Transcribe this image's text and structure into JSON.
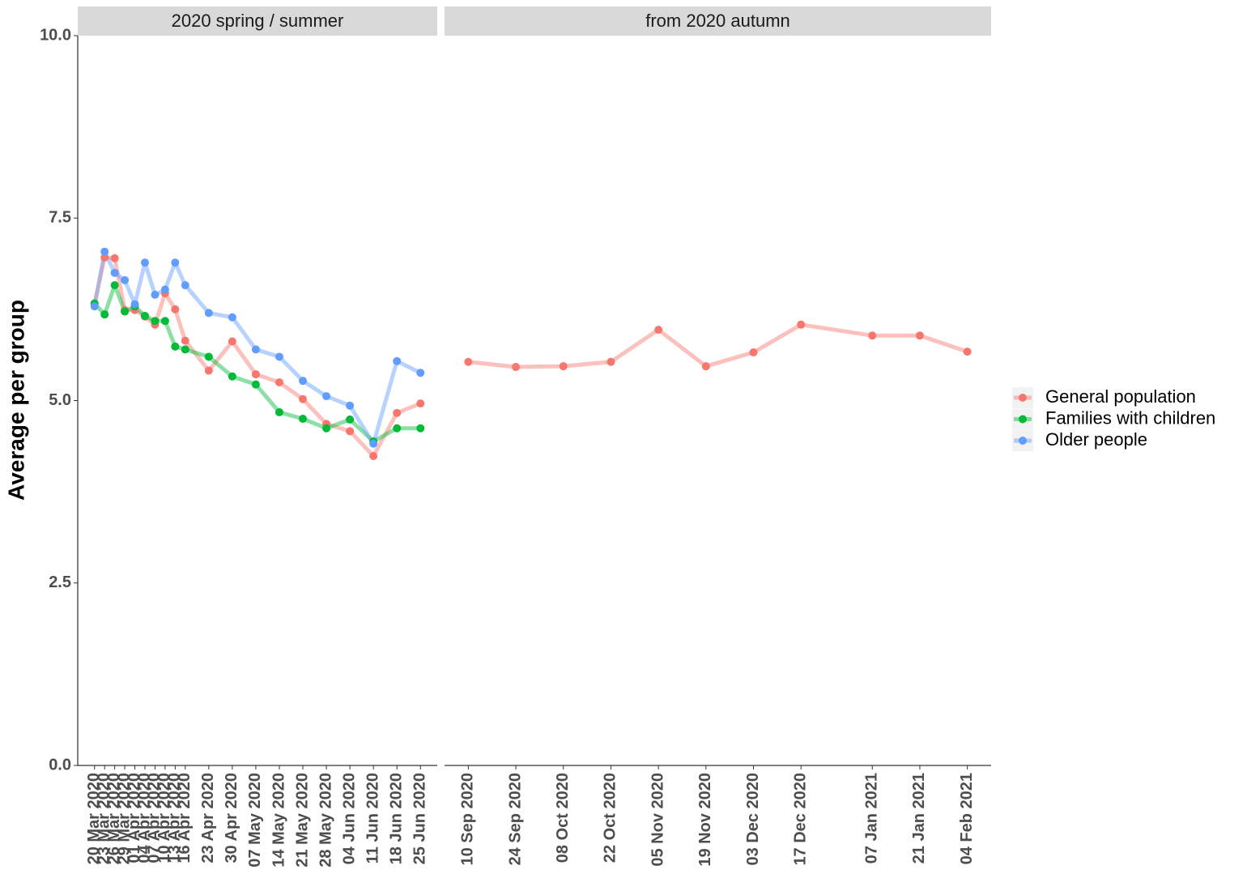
{
  "chart_data": [
    {
      "type": "line",
      "title": "2020 spring / summer",
      "y_label": "Average per group",
      "x": [
        "20 Mar 2020",
        "23 Mar 2020",
        "26 Mar 2020",
        "29 Mar 2020",
        "01 Apr 2020",
        "04 Apr 2020",
        "07 Apr 2020",
        "10 Apr 2020",
        "13 Apr 2020",
        "16 Apr 2020",
        "23 Apr 2020",
        "30 Apr 2020",
        "07 May 2020",
        "14 May 2020",
        "21 May 2020",
        "28 May 2020",
        "04 Jun 2020",
        "11 Jun 2020",
        "18 Jun 2020",
        "25 Jun 2020"
      ],
      "xlim": [
        "15 Mar 2020",
        "30 Jun 2020"
      ],
      "xticks": [
        "20 Mar 2020",
        "23 Mar 2020",
        "26 Mar 2020",
        "29 Mar 2020",
        "01 Apr 2020",
        "04 Apr 2020",
        "07 Apr 2020",
        "10 Apr 2020",
        "13 Apr 2020",
        "16 Apr 2020",
        "23 Apr 2020",
        "30 Apr 2020",
        "07 May 2020",
        "14 May 2020",
        "21 May 2020",
        "28 May 2020",
        "04 Jun 2020",
        "11 Jun 2020",
        "18 Jun 2020",
        "25 Jun 2020"
      ],
      "ylim": [
        0,
        10
      ],
      "yticks": [
        {
          "value": 0,
          "label": "0.0"
        },
        2.5,
        {
          "value": 5,
          "label": "5.0"
        },
        7.5,
        {
          "value": 10,
          "label": "10.0"
        }
      ],
      "legend": "right",
      "series": [
        {
          "name": "General population",
          "color": "#F8766D",
          "values": [
            6.33,
            6.96,
            6.95,
            6.24,
            6.24,
            6.15,
            6.04,
            6.47,
            6.25,
            5.82,
            5.41,
            5.81,
            5.36,
            5.25,
            5.02,
            4.68,
            4.58,
            4.24,
            4.83,
            4.96
          ]
        },
        {
          "name": "Families with children",
          "color": "#00BA38",
          "values": [
            6.33,
            6.18,
            6.58,
            6.22,
            6.29,
            6.16,
            6.09,
            6.09,
            5.74,
            5.7,
            5.6,
            5.33,
            5.22,
            4.84,
            4.75,
            4.62,
            4.74,
            4.44,
            4.62,
            4.62
          ]
        },
        {
          "name": "Older people",
          "color": "#619CFF",
          "values": [
            6.29,
            7.04,
            6.75,
            6.65,
            6.32,
            6.89,
            6.45,
            6.52,
            6.89,
            6.58,
            6.2,
            6.14,
            5.7,
            5.6,
            5.27,
            5.06,
            4.93,
            4.41,
            5.54,
            5.38
          ]
        }
      ]
    },
    {
      "type": "line",
      "title": "from 2020 autumn",
      "x": [
        "10 Sep 2020",
        "24 Sep 2020",
        "08 Oct 2020",
        "22 Oct 2020",
        "05 Nov 2020",
        "19 Nov 2020",
        "03 Dec 2020",
        "17 Dec 2020",
        "07 Jan 2021",
        "21 Jan 2021",
        "04 Feb 2021"
      ],
      "xlim": [
        "03 Sep 2020",
        "11 Feb 2021"
      ],
      "xticks": [
        "10 Sep 2020",
        "24 Sep 2020",
        "08 Oct 2020",
        "22 Oct 2020",
        "05 Nov 2020",
        "19 Nov 2020",
        "03 Dec 2020",
        "17 Dec 2020",
        "07 Jan 2021",
        "21 Jan 2021",
        "04 Feb 2021"
      ],
      "ylim": [
        0,
        10
      ],
      "series": [
        {
          "color": "#F8766D",
          "values": [
            5.53,
            5.46,
            5.47,
            5.53,
            5.97,
            5.47,
            5.66,
            6.04,
            5.89,
            5.89,
            5.67
          ]
        }
      ]
    }
  ]
}
